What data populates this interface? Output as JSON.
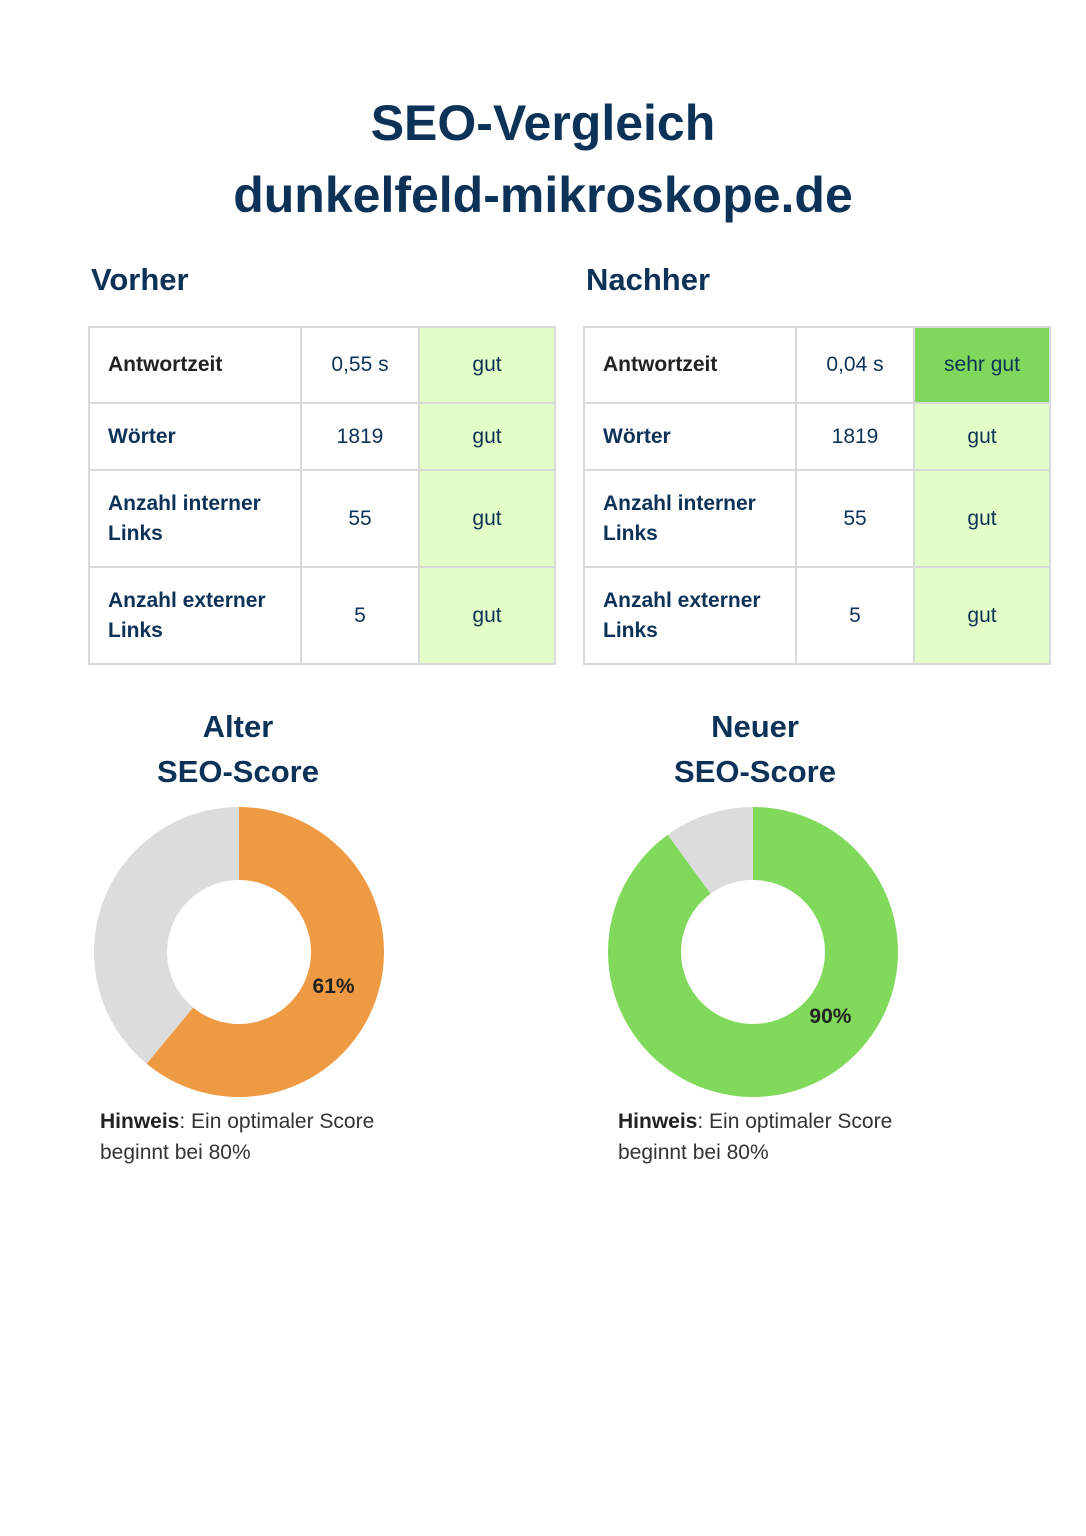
{
  "title": {
    "line1": "SEO-Vergleich",
    "line2": "dunkelfeld-mikroskope.de"
  },
  "before": {
    "heading": "Vorher",
    "rows": [
      {
        "label": "Antwortzeit",
        "value": "0,55 s",
        "rating": "gut"
      },
      {
        "label": "Wörter",
        "value": "1819",
        "rating": "gut"
      },
      {
        "label_line1": "Anzahl interner",
        "label_line2": "Links",
        "value": "55",
        "rating": "gut"
      },
      {
        "label_line1": "Anzahl externer",
        "label_line2": "Links",
        "value": "5",
        "rating": "gut"
      }
    ]
  },
  "after": {
    "heading": "Nachher",
    "rows": [
      {
        "label": "Antwortzeit",
        "value": "0,04 s",
        "rating": "sehr gut"
      },
      {
        "label": "Wörter",
        "value": "1819",
        "rating": "gut"
      },
      {
        "label_line1": "Anzahl interner",
        "label_line2": "Links",
        "value": "55",
        "rating": "gut"
      },
      {
        "label_line1": "Anzahl externer",
        "label_line2": "Links",
        "value": "5",
        "rating": "gut"
      }
    ]
  },
  "colors": {
    "heading": "#0d3258",
    "rating_good": "#e3fec6",
    "rating_very_good": "#7fd85c",
    "old_score": "#ee9a42",
    "new_score": "#80d95a",
    "remainder": "#dcdcdc"
  },
  "scores": {
    "old": {
      "heading_line1": "Alter",
      "heading_line2": "SEO-Score",
      "label": "61%",
      "note_bold": "Hinweis",
      "note_rest": ": Ein optimaler Score beginnt bei 80%"
    },
    "new": {
      "heading_line1": "Neuer",
      "heading_line2": "SEO-Score",
      "label": "90%",
      "note_bold": "Hinweis",
      "note_rest": ": Ein optimaler Score beginnt bei 80%"
    }
  },
  "chart_data": [
    {
      "type": "pie",
      "title": "Alter SEO-Score",
      "categories": [
        "Score",
        "Rest"
      ],
      "values": [
        61,
        39
      ],
      "data_labels": [
        "61%"
      ]
    },
    {
      "type": "pie",
      "title": "Neuer SEO-Score",
      "categories": [
        "Score",
        "Rest"
      ],
      "values": [
        90,
        10
      ],
      "data_labels": [
        "90%"
      ]
    }
  ]
}
